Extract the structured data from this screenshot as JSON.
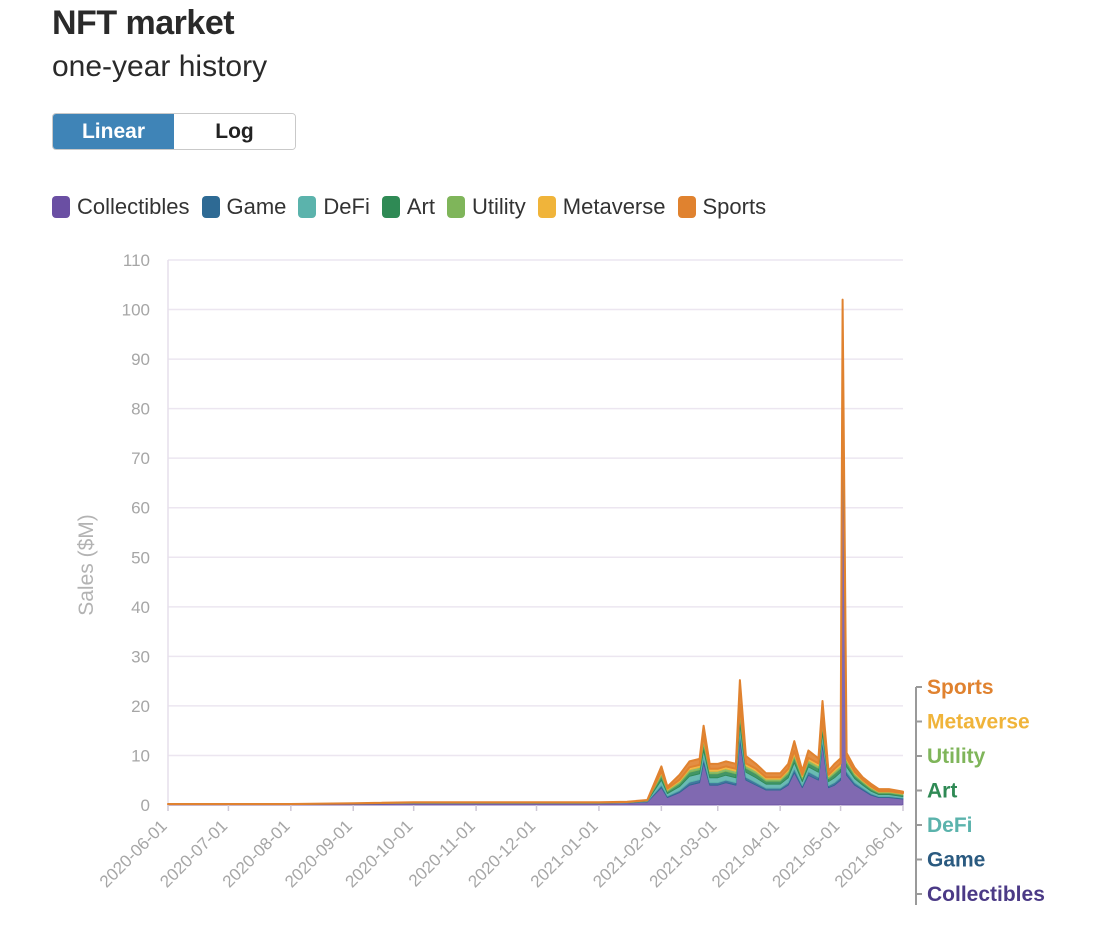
{
  "header": {
    "title": "NFT market",
    "subtitle": "one-year history"
  },
  "scale_toggle": {
    "options": [
      "Linear",
      "Log"
    ],
    "selected": "Linear"
  },
  "legend": [
    {
      "label": "Collectibles",
      "color": "#6a4fa3"
    },
    {
      "label": "Game",
      "color": "#2e6a94"
    },
    {
      "label": "DeFi",
      "color": "#5bb3ac"
    },
    {
      "label": "Art",
      "color": "#2f8a55"
    },
    {
      "label": "Utility",
      "color": "#7fb55a"
    },
    {
      "label": "Metaverse",
      "color": "#f0b43a"
    },
    {
      "label": "Sports",
      "color": "#e0822f"
    }
  ],
  "series_end_labels": [
    "Sports",
    "Metaverse",
    "Utility",
    "Art",
    "DeFi",
    "Game",
    "Collectibles"
  ],
  "chart_data": {
    "type": "area",
    "stacked": true,
    "title": "",
    "ylabel": "Sales ($M)",
    "xlabel": "",
    "ylim": [
      0,
      110
    ],
    "yticks": [
      0,
      10,
      20,
      30,
      40,
      50,
      60,
      70,
      80,
      90,
      100,
      110
    ],
    "xticks": [
      "2020-06-01",
      "2020-07-01",
      "2020-08-01",
      "2020-09-01",
      "2020-10-01",
      "2020-11-01",
      "2020-12-01",
      "2021-01-01",
      "2021-02-01",
      "2021-03-01",
      "2021-04-01",
      "2021-05-01",
      "2021-06-01"
    ],
    "grid": true,
    "x": [
      "2020-06-01",
      "2020-07-01",
      "2020-08-01",
      "2020-09-01",
      "2020-10-01",
      "2020-11-01",
      "2020-12-01",
      "2021-01-01",
      "2021-01-15",
      "2021-01-25",
      "2021-02-01",
      "2021-02-04",
      "2021-02-10",
      "2021-02-15",
      "2021-02-20",
      "2021-02-22",
      "2021-02-25",
      "2021-03-01",
      "2021-03-05",
      "2021-03-10",
      "2021-03-12",
      "2021-03-15",
      "2021-03-20",
      "2021-03-25",
      "2021-04-01",
      "2021-04-05",
      "2021-04-08",
      "2021-04-12",
      "2021-04-15",
      "2021-04-20",
      "2021-04-22",
      "2021-04-25",
      "2021-04-28",
      "2021-05-01",
      "2021-05-02",
      "2021-05-04",
      "2021-05-08",
      "2021-05-12",
      "2021-05-16",
      "2021-05-20",
      "2021-05-25",
      "2021-06-01"
    ],
    "series": [
      {
        "name": "Collectibles",
        "color": "#6a4fa3",
        "values": [
          0.1,
          0.1,
          0.1,
          0.2,
          0.3,
          0.3,
          0.3,
          0.3,
          0.4,
          0.6,
          3.5,
          1.5,
          2.5,
          4.0,
          4.5,
          8.5,
          4.0,
          4.0,
          4.5,
          4.0,
          13.0,
          5.0,
          4.0,
          3.0,
          3.0,
          4.0,
          6.5,
          3.5,
          6.0,
          5.0,
          12.0,
          3.5,
          4.0,
          5.0,
          80.0,
          6.0,
          4.0,
          3.0,
          2.0,
          1.5,
          1.5,
          1.2
        ]
      },
      {
        "name": "Game",
        "color": "#2e6a94",
        "values": [
          0.02,
          0.02,
          0.02,
          0.03,
          0.05,
          0.05,
          0.05,
          0.05,
          0.05,
          0.08,
          0.5,
          0.3,
          0.4,
          0.6,
          0.6,
          1.0,
          0.5,
          0.5,
          0.5,
          0.5,
          1.2,
          0.6,
          0.5,
          0.4,
          0.4,
          0.5,
          0.8,
          0.4,
          0.7,
          0.6,
          1.0,
          0.4,
          0.5,
          0.6,
          3.0,
          0.7,
          0.5,
          0.4,
          0.3,
          0.2,
          0.2,
          0.2
        ]
      },
      {
        "name": "DeFi",
        "color": "#5bb3ac",
        "values": [
          0.02,
          0.02,
          0.02,
          0.03,
          0.05,
          0.05,
          0.05,
          0.05,
          0.05,
          0.08,
          1.0,
          0.5,
          0.8,
          1.2,
          1.2,
          1.5,
          1.0,
          1.0,
          1.0,
          1.0,
          2.0,
          1.0,
          1.0,
          0.8,
          0.8,
          1.0,
          1.2,
          0.8,
          1.0,
          1.0,
          1.5,
          0.8,
          1.0,
          1.0,
          3.0,
          1.0,
          0.8,
          0.6,
          0.5,
          0.4,
          0.4,
          0.3
        ]
      },
      {
        "name": "Art",
        "color": "#2f8a55",
        "values": [
          0.02,
          0.02,
          0.02,
          0.03,
          0.05,
          0.05,
          0.05,
          0.05,
          0.05,
          0.08,
          0.8,
          0.4,
          0.6,
          0.8,
          0.8,
          1.2,
          0.8,
          0.8,
          0.8,
          0.8,
          1.5,
          0.8,
          0.8,
          0.6,
          0.6,
          0.8,
          1.0,
          0.6,
          0.8,
          0.8,
          1.2,
          0.6,
          0.8,
          0.8,
          3.0,
          0.8,
          0.6,
          0.5,
          0.4,
          0.3,
          0.3,
          0.3
        ]
      },
      {
        "name": "Utility",
        "color": "#7fb55a",
        "values": [
          0.01,
          0.01,
          0.01,
          0.02,
          0.03,
          0.03,
          0.03,
          0.03,
          0.03,
          0.05,
          0.5,
          0.3,
          0.4,
          0.5,
          0.5,
          0.8,
          0.5,
          0.5,
          0.5,
          0.5,
          1.0,
          0.5,
          0.5,
          0.4,
          0.4,
          0.5,
          0.6,
          0.4,
          0.5,
          0.5,
          0.8,
          0.4,
          0.5,
          0.5,
          2.0,
          0.5,
          0.4,
          0.3,
          0.3,
          0.2,
          0.2,
          0.2
        ]
      },
      {
        "name": "Metaverse",
        "color": "#f0b43a",
        "values": [
          0.01,
          0.01,
          0.01,
          0.02,
          0.03,
          0.03,
          0.03,
          0.03,
          0.03,
          0.05,
          0.5,
          0.3,
          0.4,
          0.5,
          0.5,
          1.0,
          0.5,
          0.5,
          0.5,
          0.5,
          1.5,
          0.5,
          0.5,
          0.4,
          0.4,
          0.5,
          0.8,
          0.4,
          0.5,
          0.5,
          1.0,
          0.4,
          0.5,
          0.5,
          5.0,
          0.5,
          0.4,
          0.3,
          0.3,
          0.2,
          0.2,
          0.2
        ]
      },
      {
        "name": "Sports",
        "color": "#e0822f",
        "values": [
          0.02,
          0.02,
          0.02,
          0.03,
          0.05,
          0.05,
          0.05,
          0.05,
          0.05,
          0.06,
          1.0,
          0.4,
          1.0,
          1.2,
          1.2,
          2.0,
          1.0,
          1.0,
          1.0,
          1.0,
          5.0,
          1.5,
          1.0,
          0.8,
          0.8,
          1.0,
          2.0,
          0.8,
          1.5,
          1.0,
          3.5,
          0.8,
          1.0,
          1.0,
          6.0,
          1.0,
          0.8,
          0.5,
          0.5,
          0.4,
          0.4,
          0.3
        ]
      }
    ]
  }
}
